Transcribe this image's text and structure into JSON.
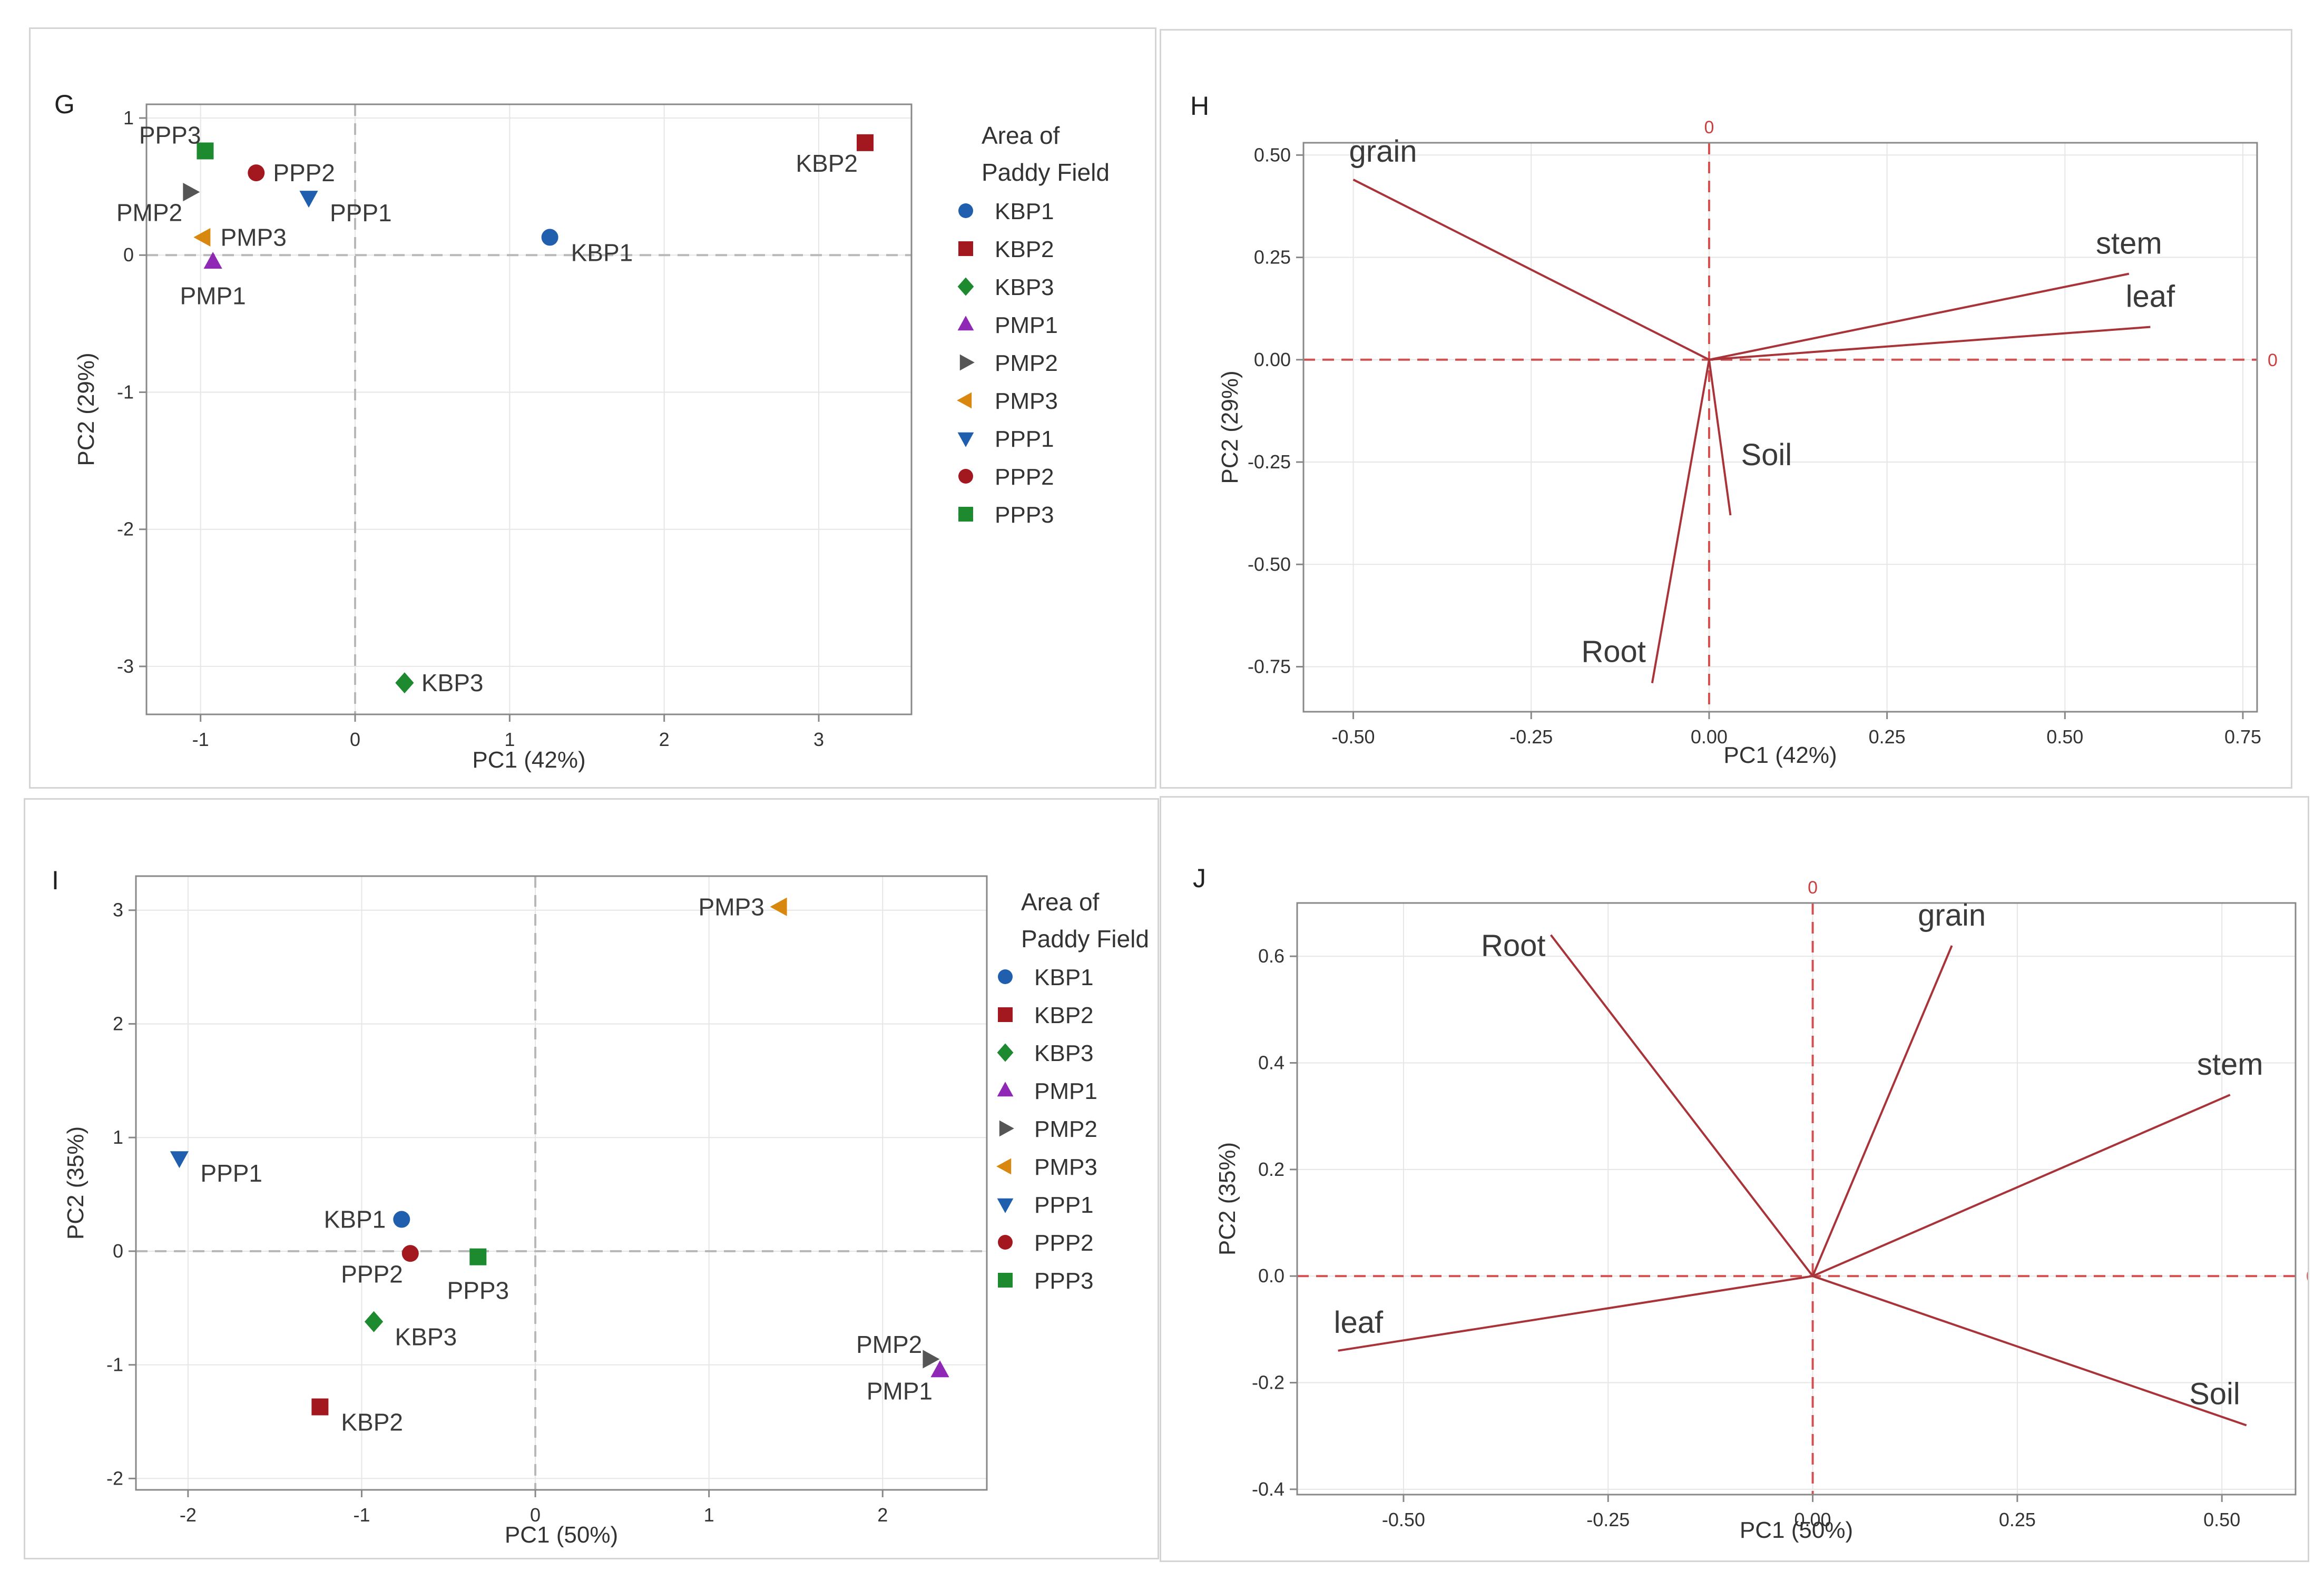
{
  "chart_data": [
    {
      "type": "scatter",
      "panel": "G",
      "xlabel": "PC1 (42%)",
      "ylabel": "PC2 (29%)",
      "xlim": [
        -1.35,
        3.6
      ],
      "ylim": [
        -3.35,
        1.1
      ],
      "xticks": [
        -1,
        0,
        1,
        2,
        3
      ],
      "yticks": [
        1,
        0,
        -1,
        -2,
        -3
      ],
      "xtick_labels": [
        "-1",
        "0",
        "1",
        "2",
        "3"
      ],
      "ytick_labels": [
        "1",
        "0",
        "-1",
        "-2",
        "-3"
      ],
      "legend_title": [
        "Area of",
        "Paddy Field"
      ],
      "legend_placement": "right",
      "points": [
        {
          "name": "PPP3",
          "x": -0.97,
          "y": 0.76,
          "anchor": "top-left"
        },
        {
          "name": "PPP2",
          "x": -0.64,
          "y": 0.6,
          "anchor": "right"
        },
        {
          "name": "PMP2",
          "x": -1.07,
          "y": 0.46,
          "anchor": "below-left"
        },
        {
          "name": "PPP1",
          "x": -0.3,
          "y": 0.42,
          "anchor": "below-right"
        },
        {
          "name": "PMP3",
          "x": -0.98,
          "y": 0.13,
          "anchor": "right"
        },
        {
          "name": "PMP1",
          "x": -0.92,
          "y": -0.05,
          "anchor": "below"
        },
        {
          "name": "KBP1",
          "x": 1.26,
          "y": 0.13,
          "anchor": "below-right"
        },
        {
          "name": "KBP2",
          "x": 3.3,
          "y": 0.82,
          "anchor": "below-left"
        },
        {
          "name": "KBP3",
          "x": 0.32,
          "y": -3.12,
          "anchor": "right"
        }
      ]
    },
    {
      "type": "line",
      "panel": "H",
      "subtype": "loading plot",
      "xlabel": "PC1 (42%)",
      "ylabel": "PC2 (29%)",
      "xlim": [
        -0.57,
        0.77
      ],
      "ylim": [
        -0.86,
        0.53
      ],
      "xticks": [
        -0.5,
        -0.25,
        0,
        0.25,
        0.5,
        0.75
      ],
      "yticks": [
        0.5,
        0.25,
        0,
        -0.25,
        -0.5,
        -0.75
      ],
      "xtick_labels": [
        "-0.50",
        "-0.25",
        "0.00",
        "0.25",
        "0.50",
        "0.75"
      ],
      "ytick_labels": [
        "0.50",
        "0.25",
        "0.00",
        "-0.25",
        "-0.50",
        "-0.75"
      ],
      "zero_label": "0",
      "loadings": [
        {
          "name": "grain",
          "x": -0.5,
          "y": 0.44,
          "anchor": "above-right"
        },
        {
          "name": "stem",
          "x": 0.59,
          "y": 0.21,
          "anchor": "above"
        },
        {
          "name": "leaf",
          "x": 0.62,
          "y": 0.08,
          "anchor": "above"
        },
        {
          "name": "Soil",
          "x": 0.03,
          "y": -0.38,
          "anchor": "upper-right"
        },
        {
          "name": "Root",
          "x": -0.08,
          "y": -0.79,
          "anchor": "upper-left"
        }
      ]
    },
    {
      "type": "scatter",
      "panel": "I",
      "xlabel": "PC1 (50%)",
      "ylabel": "PC2 (35%)",
      "xlim": [
        -2.3,
        2.6
      ],
      "ylim": [
        -2.1,
        3.3
      ],
      "xticks": [
        -2,
        -1,
        0,
        1,
        2
      ],
      "yticks": [
        3,
        2,
        1,
        0,
        -1,
        -2
      ],
      "xtick_labels": [
        "-2",
        "-1",
        "0",
        "1",
        "2"
      ],
      "ytick_labels": [
        "3",
        "2",
        "1",
        "0",
        "-1",
        "-2"
      ],
      "legend_title": [
        "Area of",
        "Paddy Field"
      ],
      "legend_placement": "right",
      "points": [
        {
          "name": "PMP3",
          "x": 1.41,
          "y": 3.03,
          "anchor": "left"
        },
        {
          "name": "PPP1",
          "x": -2.05,
          "y": 0.82,
          "anchor": "below-right"
        },
        {
          "name": "KBP1",
          "x": -0.77,
          "y": 0.28,
          "anchor": "left"
        },
        {
          "name": "PPP2",
          "x": -0.72,
          "y": -0.02,
          "anchor": "below-left"
        },
        {
          "name": "PPP3",
          "x": -0.33,
          "y": -0.05,
          "anchor": "below"
        },
        {
          "name": "KBP3",
          "x": -0.93,
          "y": -0.62,
          "anchor": "below-right"
        },
        {
          "name": "KBP2",
          "x": -1.24,
          "y": -1.37,
          "anchor": "below-right"
        },
        {
          "name": "PMP2",
          "x": 2.27,
          "y": -0.95,
          "anchor": "above-left"
        },
        {
          "name": "PMP1",
          "x": 2.33,
          "y": -1.05,
          "anchor": "below-left"
        }
      ]
    },
    {
      "type": "line",
      "panel": "J",
      "subtype": "loading plot",
      "xlabel": "PC1 (50%)",
      "ylabel": "PC2 (35%)",
      "xlim": [
        -0.63,
        0.59
      ],
      "ylim": [
        -0.41,
        0.7
      ],
      "xticks": [
        -0.5,
        -0.25,
        0,
        0.25,
        0.5
      ],
      "yticks": [
        0.6,
        0.4,
        0.2,
        0,
        -0.2,
        -0.4
      ],
      "xtick_labels": [
        "-0.50",
        "-0.25",
        "0.00",
        "0.25",
        "0.50"
      ],
      "ytick_labels": [
        "0.6",
        "0.4",
        "0.2",
        "0.0",
        "-0.2",
        "-0.4"
      ],
      "zero_label": "0",
      "loadings": [
        {
          "name": "Root",
          "x": -0.32,
          "y": 0.64,
          "anchor": "lower-left"
        },
        {
          "name": "grain",
          "x": 0.17,
          "y": 0.62,
          "anchor": "above"
        },
        {
          "name": "stem",
          "x": 0.51,
          "y": 0.34,
          "anchor": "above"
        },
        {
          "name": "leaf",
          "x": -0.58,
          "y": -0.14,
          "anchor": "above-right"
        },
        {
          "name": "Soil",
          "x": 0.53,
          "y": -0.28,
          "anchor": "upper-left"
        }
      ]
    }
  ],
  "legend_items": [
    {
      "name": "KBP1",
      "color": "#1f5fae",
      "marker": "circle"
    },
    {
      "name": "KBP2",
      "color": "#a3181e",
      "marker": "square"
    },
    {
      "name": "KBP3",
      "color": "#1d8a2f",
      "marker": "diamond"
    },
    {
      "name": "PMP1",
      "color": "#8e28b5",
      "marker": "triangle-up"
    },
    {
      "name": "PMP2",
      "color": "#555555",
      "marker": "triangle-right"
    },
    {
      "name": "PMP3",
      "color": "#d8880e",
      "marker": "triangle-left"
    },
    {
      "name": "PPP1",
      "color": "#1f5fae",
      "marker": "triangle-down"
    },
    {
      "name": "PPP2",
      "color": "#a3181e",
      "marker": "circle"
    },
    {
      "name": "PPP3",
      "color": "#1d8a2f",
      "marker": "square"
    }
  ],
  "colors": {
    "loading_line": "#a8343a",
    "zero_line": "#d35050",
    "frame": "#888888",
    "grid": "#e6e6e6",
    "dash_axis": "#b8b8b8"
  }
}
